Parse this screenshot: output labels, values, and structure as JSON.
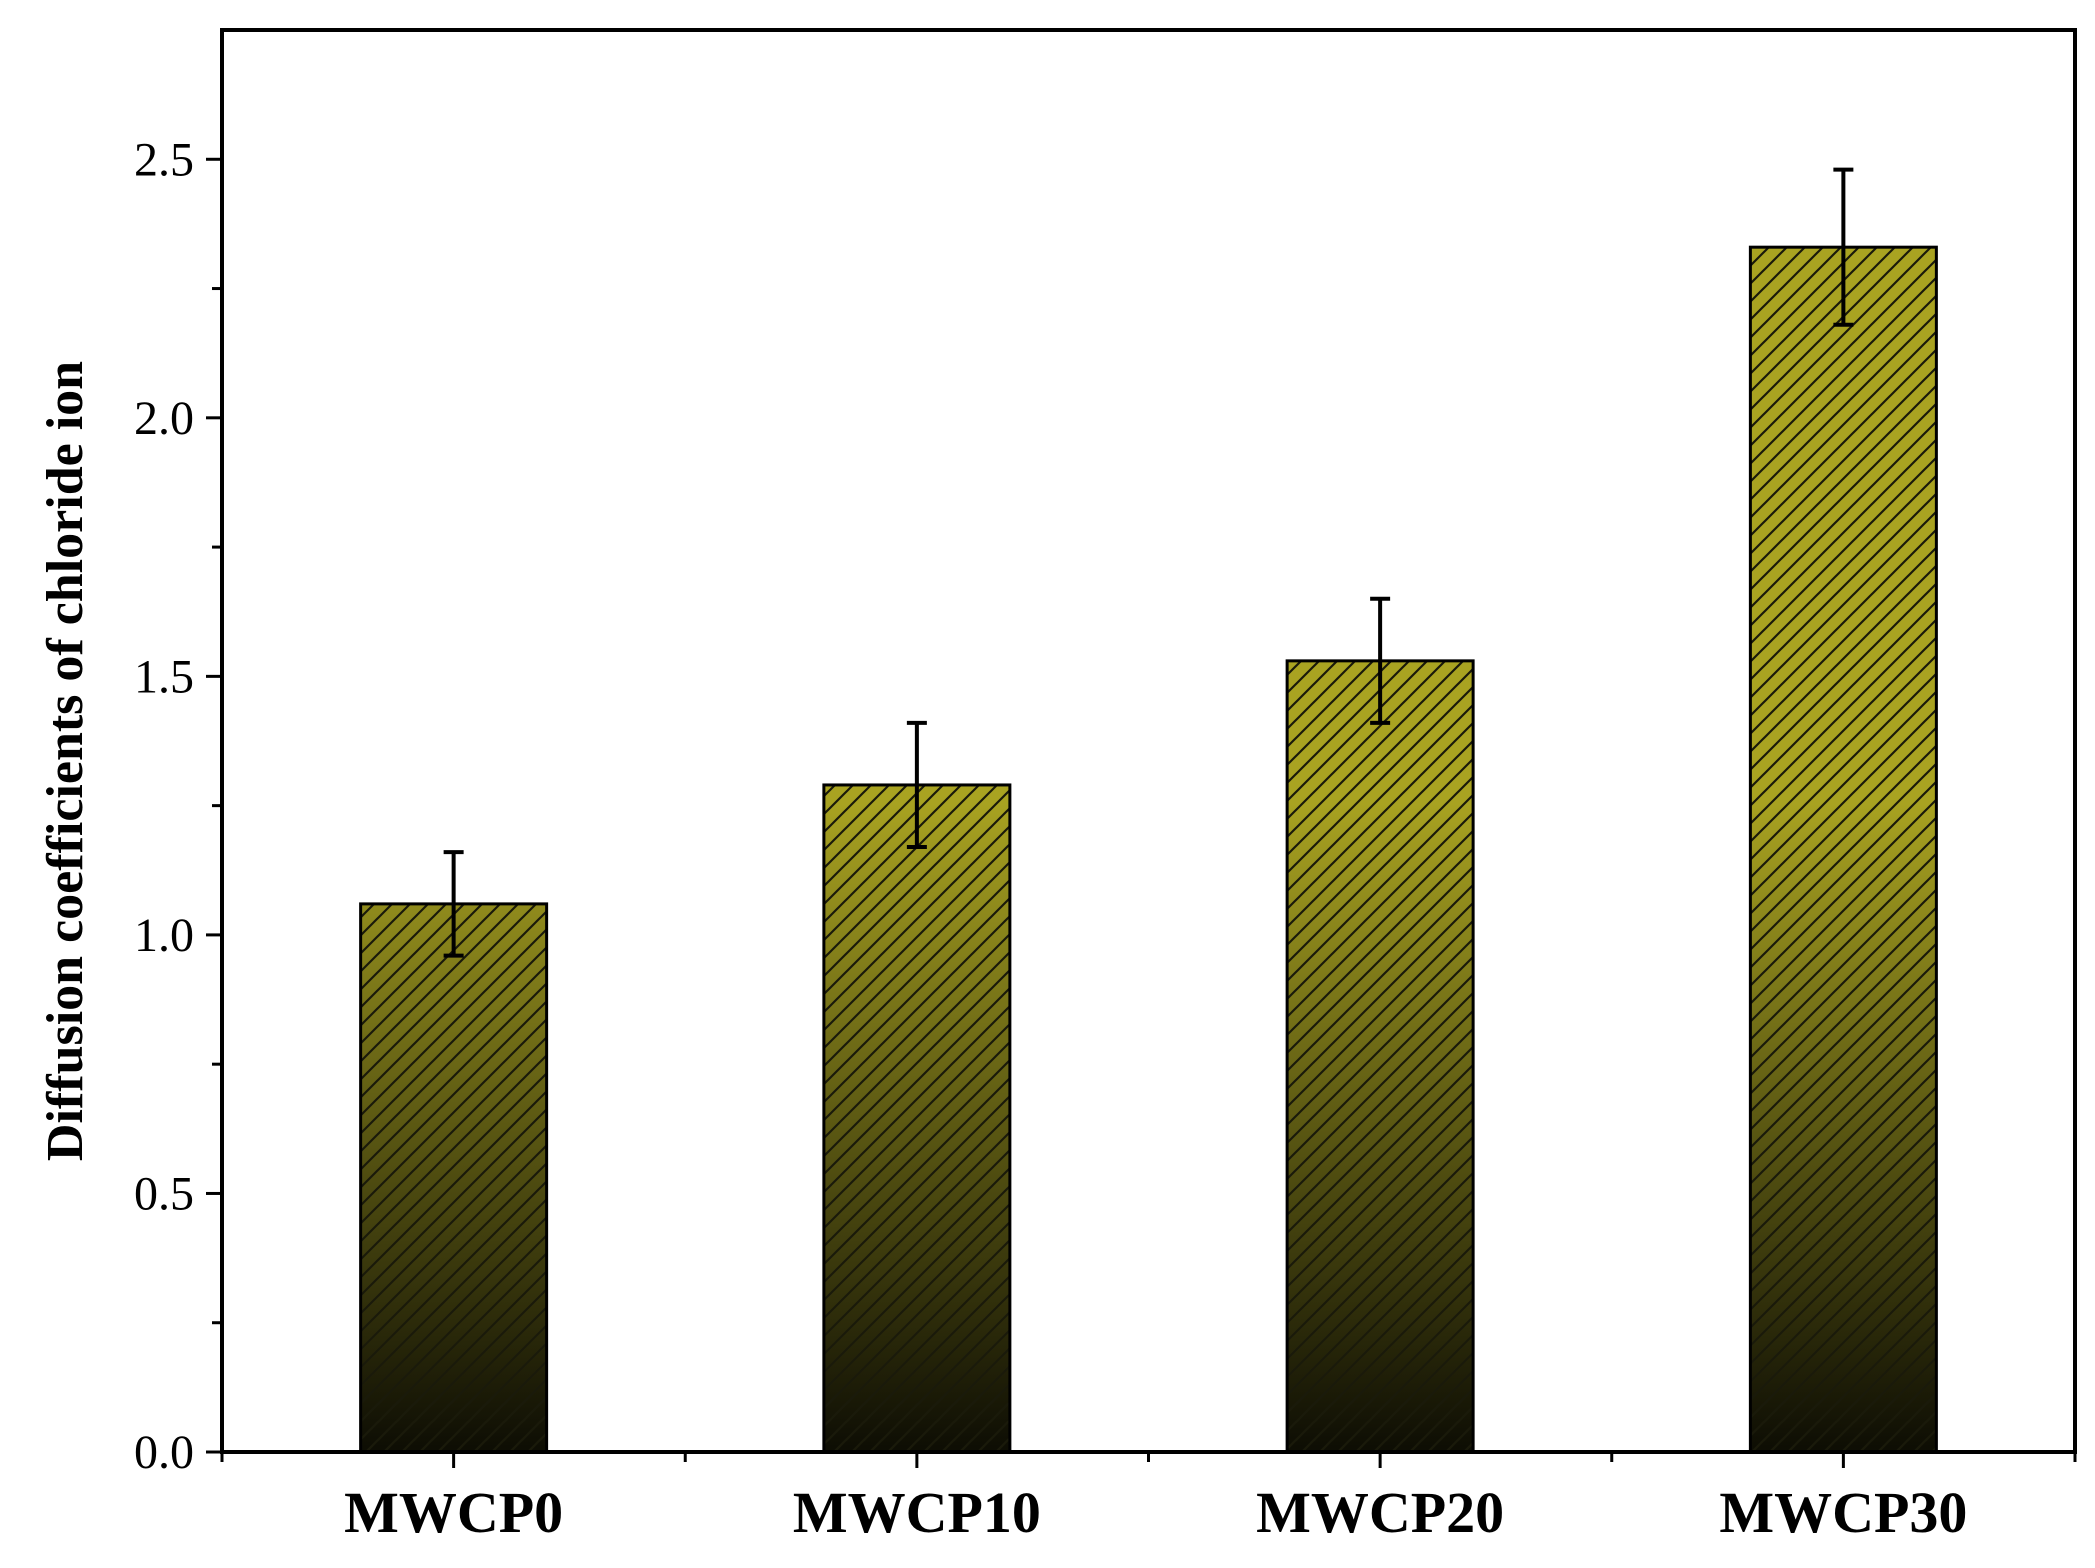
{
  "chart_data": {
    "type": "bar",
    "title": "",
    "xlabel": "",
    "ylabel": "Diffusion coefficients of chloride ion",
    "categories": [
      "MWCP0",
      "MWCP10",
      "MWCP20",
      "MWCP30"
    ],
    "values": [
      1.06,
      1.29,
      1.53,
      2.33
    ],
    "errors": [
      0.1,
      0.12,
      0.12,
      0.15
    ],
    "ylim": [
      0,
      2.75
    ],
    "yticks": [
      0.0,
      0.5,
      1.0,
      1.5,
      2.0,
      2.5
    ],
    "ytick_labels": [
      "0.0",
      "0.5",
      "1.0",
      "1.5",
      "2.0",
      "2.5"
    ],
    "grid": false,
    "colors": {
      "bar_top": "#a9a321",
      "bar_bottom": "#0d0d04",
      "hatch": "#1a1a0a",
      "axis": "#000000"
    }
  }
}
